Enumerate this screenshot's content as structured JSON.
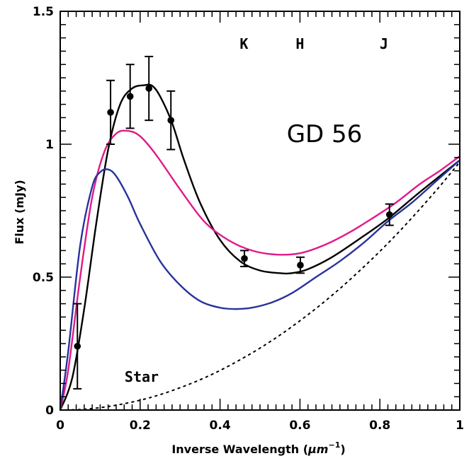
{
  "chart_data": {
    "type": "line",
    "title": "",
    "object_label": "GD 56",
    "xlabel_main": "Inverse Wavelength (",
    "xlabel_unit": "μm",
    "xlabel_exp": "−1",
    "xlabel_close": ")",
    "ylabel": "Flux (mJy)",
    "xlim": [
      0,
      1
    ],
    "ylim": [
      0,
      1.5
    ],
    "x_ticks": [
      {
        "value": 0,
        "label": "0"
      },
      {
        "value": 0.2,
        "label": "0.2"
      },
      {
        "value": 0.4,
        "label": "0.4"
      },
      {
        "value": 0.6,
        "label": "0.6"
      },
      {
        "value": 0.8,
        "label": "0.8"
      },
      {
        "value": 1,
        "label": "1"
      }
    ],
    "y_ticks": [
      {
        "value": 0,
        "label": "0"
      },
      {
        "value": 0.5,
        "label": "0.5"
      },
      {
        "value": 1,
        "label": "1"
      },
      {
        "value": 1.5,
        "label": "1.5"
      }
    ],
    "band_labels": [
      {
        "x": 0.46,
        "text": "K"
      },
      {
        "x": 0.6,
        "text": "H"
      },
      {
        "x": 0.81,
        "text": "J"
      }
    ],
    "star_label": "Star",
    "grid": false,
    "colors": {
      "black_fit": "#000000",
      "pink_model": "#e0198a",
      "blue_model": "#27339a",
      "star": "#000000"
    },
    "points": [
      {
        "x": 0.043,
        "y": 0.24,
        "err": 0.16
      },
      {
        "x": 0.126,
        "y": 1.12,
        "err": 0.12
      },
      {
        "x": 0.175,
        "y": 1.18,
        "err": 0.12
      },
      {
        "x": 0.222,
        "y": 1.21,
        "err": 0.12
      },
      {
        "x": 0.277,
        "y": 1.09,
        "err": 0.11
      },
      {
        "x": 0.461,
        "y": 0.57,
        "err": 0.03
      },
      {
        "x": 0.601,
        "y": 0.545,
        "err": 0.03
      },
      {
        "x": 0.824,
        "y": 0.735,
        "err": 0.04
      }
    ],
    "series": [
      {
        "color_key": "black_fit",
        "style": "solid",
        "x": [
          0,
          0.03,
          0.06,
          0.09,
          0.12,
          0.15,
          0.18,
          0.21,
          0.23,
          0.25,
          0.28,
          0.31,
          0.35,
          0.4,
          0.45,
          0.5,
          0.55,
          0.58,
          0.62,
          0.68,
          0.75,
          0.82,
          0.9,
          1.0
        ],
        "y": [
          0,
          0.12,
          0.38,
          0.7,
          0.98,
          1.15,
          1.21,
          1.222,
          1.22,
          1.18,
          1.08,
          0.94,
          0.78,
          0.64,
          0.56,
          0.525,
          0.515,
          0.515,
          0.53,
          0.575,
          0.645,
          0.72,
          0.82,
          0.94
        ]
      },
      {
        "color_key": "pink_model",
        "style": "solid",
        "x": [
          0,
          0.02,
          0.05,
          0.08,
          0.11,
          0.14,
          0.17,
          0.2,
          0.24,
          0.3,
          0.36,
          0.42,
          0.48,
          0.54,
          0.6,
          0.66,
          0.72,
          0.78,
          0.84,
          0.9,
          0.95,
          1.0
        ],
        "y": [
          0,
          0.15,
          0.5,
          0.8,
          0.97,
          1.04,
          1.05,
          1.03,
          0.96,
          0.83,
          0.71,
          0.64,
          0.6,
          0.585,
          0.59,
          0.62,
          0.665,
          0.72,
          0.78,
          0.85,
          0.9,
          0.955
        ]
      },
      {
        "color_key": "blue_model",
        "style": "solid",
        "x": [
          0,
          0.02,
          0.05,
          0.08,
          0.1,
          0.12,
          0.14,
          0.17,
          0.2,
          0.25,
          0.3,
          0.35,
          0.4,
          0.44,
          0.48,
          0.53,
          0.58,
          0.64,
          0.7,
          0.76,
          0.82,
          0.88,
          0.94,
          1.0
        ],
        "y": [
          0,
          0.22,
          0.62,
          0.84,
          0.895,
          0.905,
          0.88,
          0.8,
          0.7,
          0.56,
          0.47,
          0.41,
          0.385,
          0.38,
          0.385,
          0.405,
          0.44,
          0.5,
          0.56,
          0.63,
          0.71,
          0.78,
          0.86,
          0.94
        ]
      },
      {
        "color_key": "star",
        "style": "dotted",
        "x": [
          0,
          0.05,
          0.1,
          0.15,
          0.2,
          0.25,
          0.3,
          0.35,
          0.4,
          0.45,
          0.5,
          0.55,
          0.6,
          0.65,
          0.7,
          0.75,
          0.8,
          0.85,
          0.9,
          0.95,
          1.0
        ],
        "y": [
          0,
          0.002,
          0.009,
          0.021,
          0.037,
          0.058,
          0.084,
          0.114,
          0.149,
          0.189,
          0.233,
          0.282,
          0.336,
          0.394,
          0.457,
          0.525,
          0.597,
          0.674,
          0.756,
          0.842,
          0.933
        ]
      }
    ]
  }
}
